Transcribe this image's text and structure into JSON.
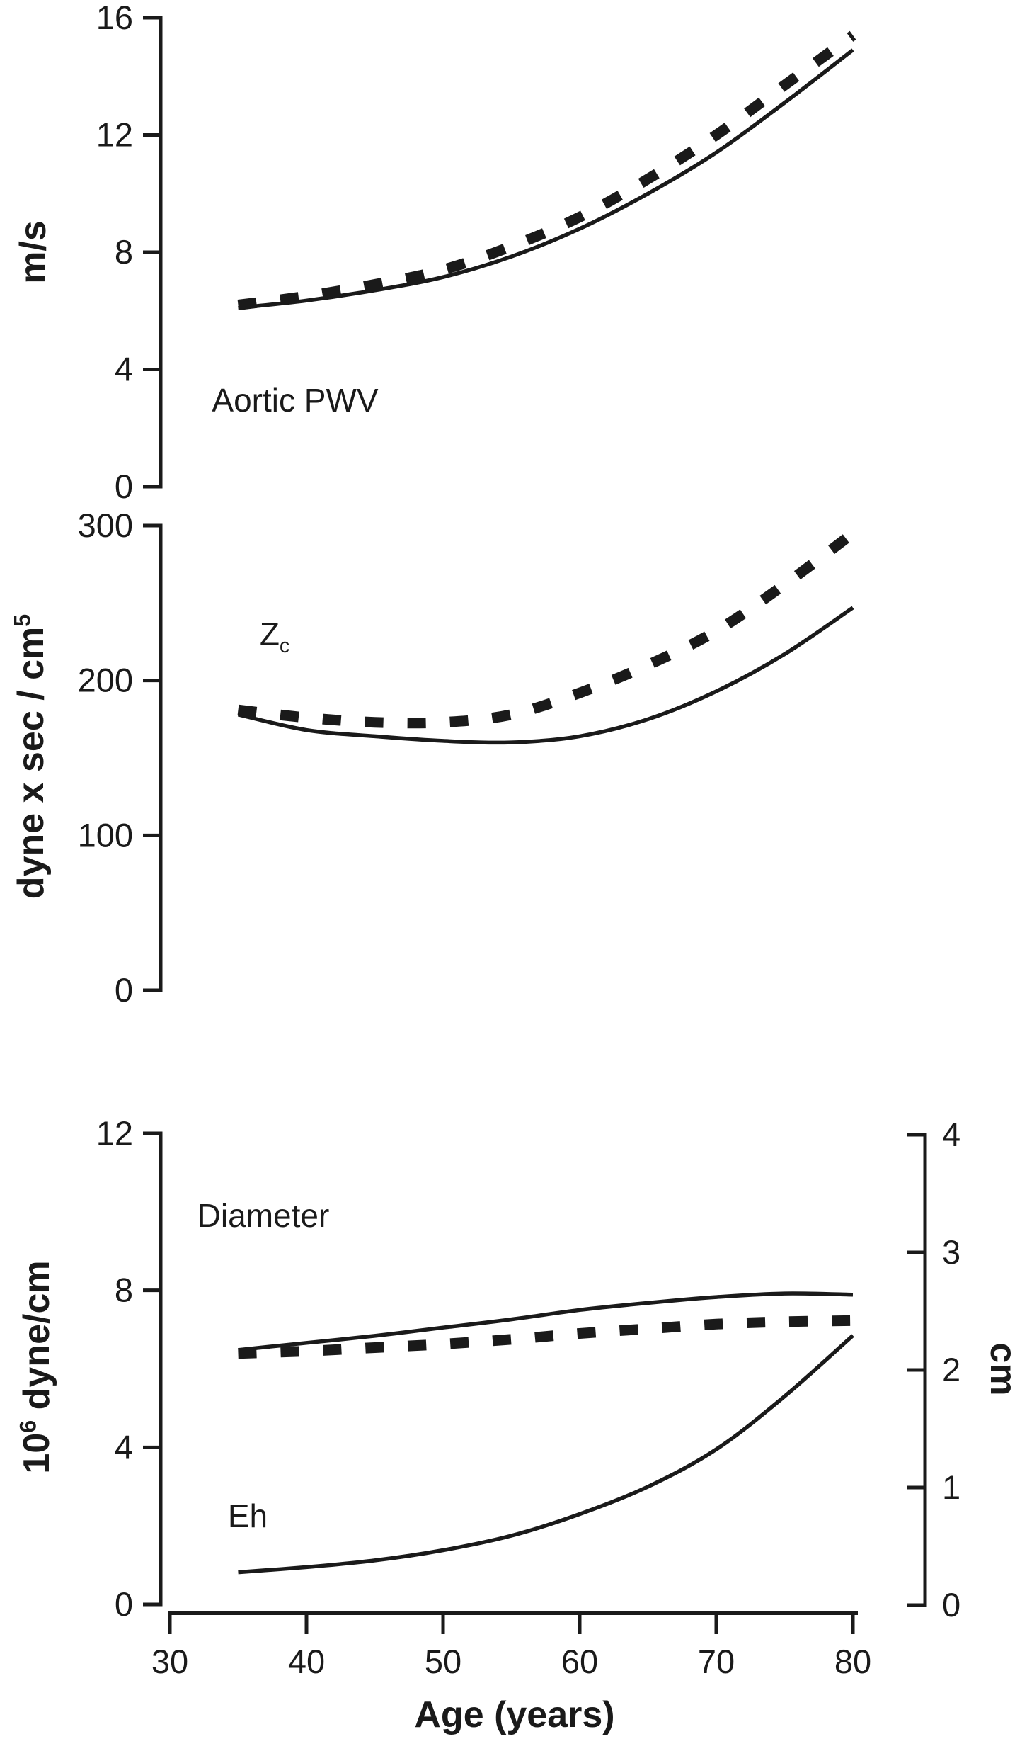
{
  "figure": {
    "background": "#ffffff",
    "ink_color": "#1a1a1a",
    "xlabel": "Age (years)",
    "x_ticks": [
      30,
      40,
      50,
      60,
      70,
      80
    ],
    "legend": "none",
    "grid": "off"
  },
  "chart_data": [
    {
      "type": "line",
      "panel": "top",
      "label": "Aortic PWV",
      "ylabel": "m/s",
      "xlabel": "Age (years)",
      "xlim": [
        30,
        80
      ],
      "ylim": [
        0,
        16
      ],
      "yticks": [
        0,
        4,
        8,
        12,
        16
      ],
      "x": [
        35,
        40,
        45,
        50,
        55,
        60,
        65,
        70,
        75,
        80
      ],
      "series": [
        {
          "name": "dashed",
          "style": "dashed",
          "values": [
            6.2,
            6.5,
            6.9,
            7.4,
            8.2,
            9.2,
            10.5,
            12.0,
            13.7,
            15.4
          ]
        },
        {
          "name": "solid",
          "style": "solid",
          "values": [
            6.1,
            6.35,
            6.7,
            7.15,
            7.85,
            8.8,
            10.0,
            11.4,
            13.1,
            14.9
          ]
        }
      ]
    },
    {
      "type": "line",
      "panel": "middle",
      "label": {
        "base": "Z",
        "sub": "c"
      },
      "ylabel": {
        "pre": "dyne x sec / cm",
        "sup": "5"
      },
      "xlabel": "Age (years)",
      "xlim": [
        30,
        80
      ],
      "ylim": [
        0,
        300
      ],
      "yticks": [
        0,
        100,
        200,
        300
      ],
      "x": [
        35,
        40,
        45,
        50,
        55,
        60,
        65,
        70,
        75,
        80
      ],
      "series": [
        {
          "name": "dashed",
          "style": "dashed",
          "values": [
            181,
            176,
            173,
            173,
            178,
            192,
            210,
            232,
            262,
            295
          ]
        },
        {
          "name": "solid",
          "style": "solid",
          "values": [
            178,
            168,
            164,
            161,
            160,
            164,
            175,
            193,
            217,
            247
          ]
        }
      ]
    },
    {
      "type": "line",
      "panel": "bottom",
      "labels": {
        "diameter": "Diameter",
        "eh": "Eh"
      },
      "ylabel_left": {
        "base": "10",
        "sup": "6",
        "post": " dyne/cm"
      },
      "ylabel_right": "cm",
      "xlabel": "Age (years)",
      "xlim": [
        30,
        80
      ],
      "ylim_left": [
        0,
        12
      ],
      "yticks_left": [
        0,
        4,
        8,
        12
      ],
      "ylim_right": [
        0,
        4
      ],
      "yticks_right": [
        0,
        1,
        2,
        3,
        4
      ],
      "x": [
        35,
        40,
        45,
        50,
        55,
        60,
        65,
        70,
        75,
        80
      ],
      "series": [
        {
          "name": "diameter_solid",
          "style": "solid",
          "axis": "right",
          "values": [
            2.17,
            2.23,
            2.29,
            2.36,
            2.43,
            2.51,
            2.57,
            2.62,
            2.65,
            2.64
          ]
        },
        {
          "name": "diameter_dashed",
          "style": "dashed",
          "axis": "right",
          "values": [
            2.14,
            2.16,
            2.19,
            2.22,
            2.26,
            2.31,
            2.35,
            2.39,
            2.41,
            2.42
          ]
        },
        {
          "name": "eh_solid",
          "style": "solid",
          "axis": "left",
          "values": [
            0.82,
            0.95,
            1.12,
            1.38,
            1.75,
            2.3,
            3.0,
            3.95,
            5.3,
            6.85
          ]
        }
      ]
    }
  ]
}
